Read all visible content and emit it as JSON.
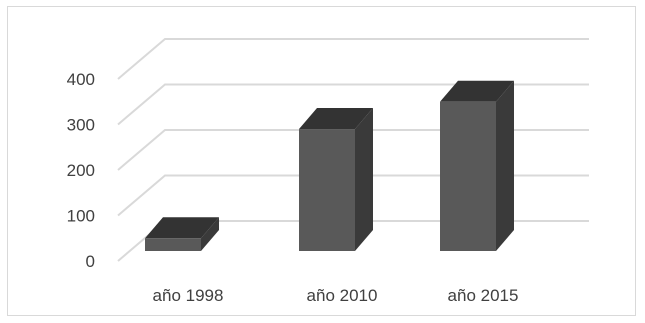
{
  "chart_data": {
    "type": "bar",
    "categories": [
      "año 1998",
      "año 2010",
      "año 2015"
    ],
    "values": [
      50,
      290,
      350
    ],
    "ylim": [
      0,
      400
    ],
    "yticks": [
      0,
      100,
      200,
      300,
      400
    ],
    "grid": true,
    "three_d": true,
    "legend": "none",
    "colors": {
      "bar_front": "#595959",
      "bar_top": "#333333",
      "bar_side": "#3a3a3a",
      "grid": "#d9d9d9",
      "text": "#404040"
    }
  }
}
